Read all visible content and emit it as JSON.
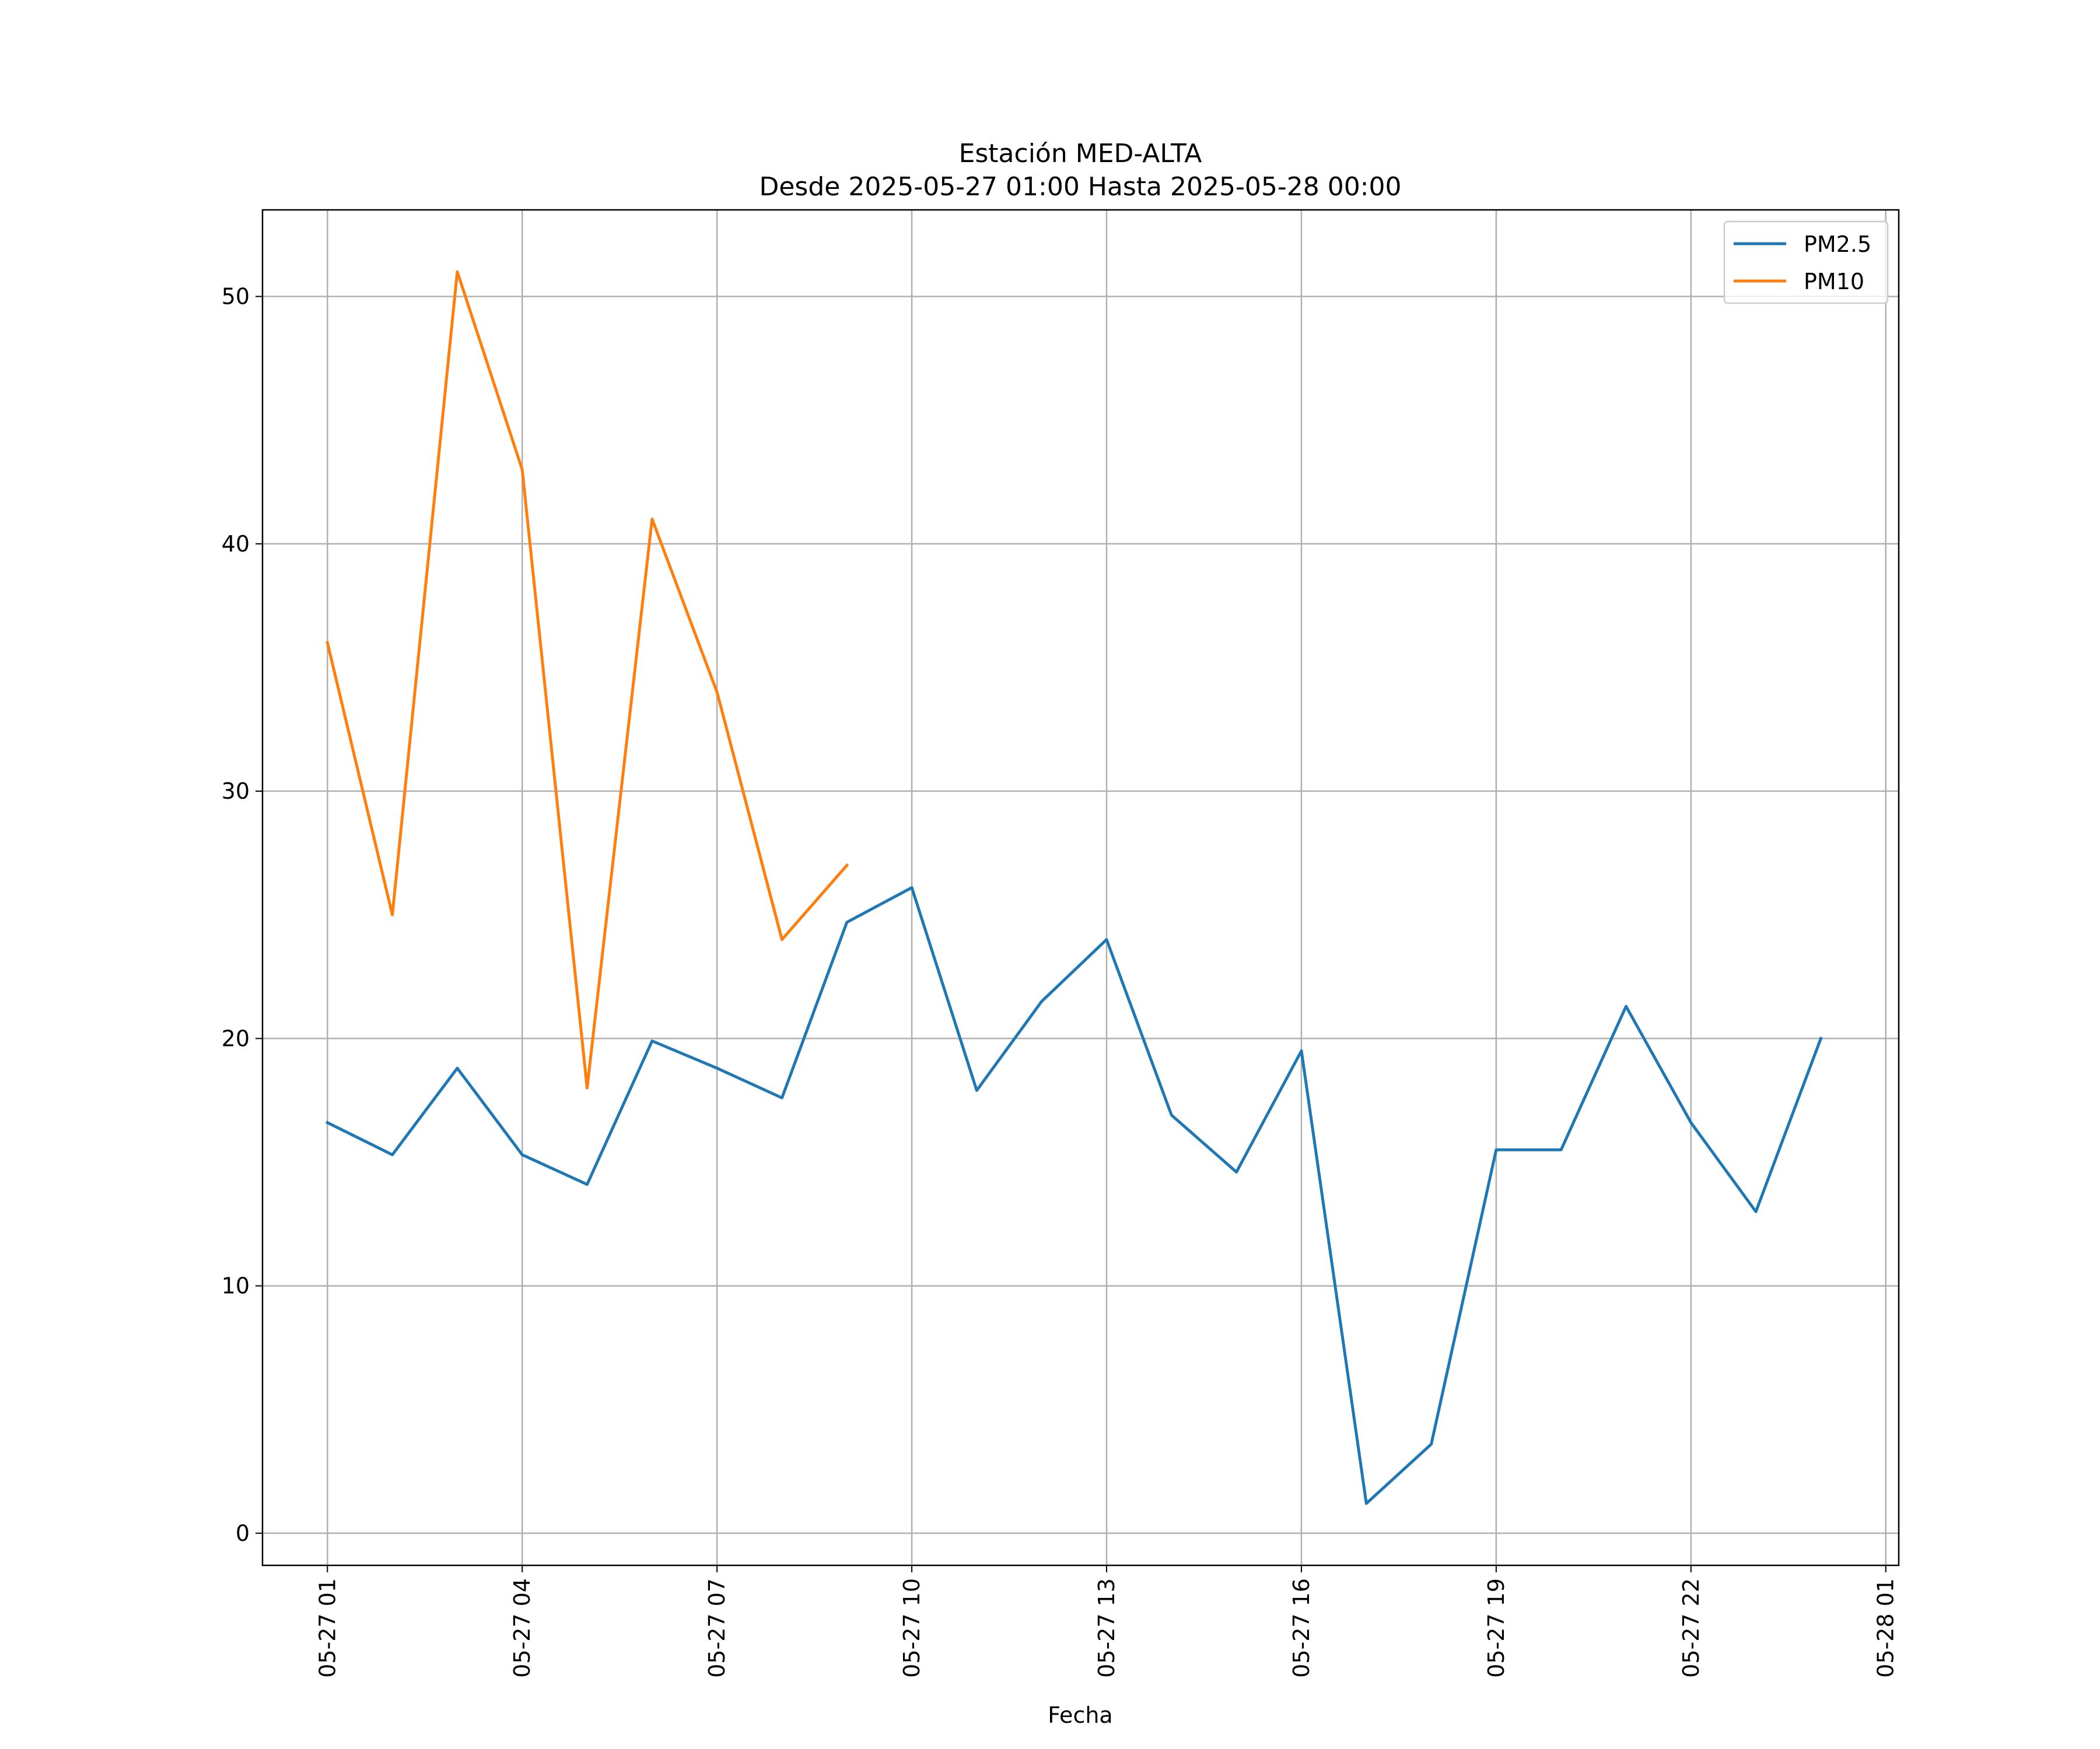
{
  "chart_data": {
    "type": "line",
    "title": "Estación MED-ALTA",
    "subtitle": "Desde 2025-05-27 01:00 Hasta 2025-05-28 00:00",
    "xlabel": "Fecha",
    "ylabel": "",
    "x": [
      "2025-05-27 01:00",
      "2025-05-27 02:00",
      "2025-05-27 03:00",
      "2025-05-27 04:00",
      "2025-05-27 05:00",
      "2025-05-27 06:00",
      "2025-05-27 07:00",
      "2025-05-27 08:00",
      "2025-05-27 09:00",
      "2025-05-27 10:00",
      "2025-05-27 11:00",
      "2025-05-27 12:00",
      "2025-05-27 13:00",
      "2025-05-27 14:00",
      "2025-05-27 15:00",
      "2025-05-27 16:00",
      "2025-05-27 17:00",
      "2025-05-27 18:00",
      "2025-05-27 19:00",
      "2025-05-27 20:00",
      "2025-05-27 21:00",
      "2025-05-27 22:00",
      "2025-05-27 23:00",
      "2025-05-28 00:00"
    ],
    "series": [
      {
        "name": "PM2.5",
        "color": "#1f77b4",
        "values": [
          16.6,
          15.3,
          18.8,
          15.3,
          14.1,
          19.9,
          18.8,
          17.6,
          24.7,
          26.1,
          17.9,
          21.5,
          24.0,
          16.9,
          14.6,
          19.5,
          1.2,
          3.6,
          15.5,
          15.5,
          21.3,
          16.6,
          13.0,
          20.0
        ]
      },
      {
        "name": "PM10",
        "color": "#ff7f0e",
        "values": [
          36,
          25,
          51,
          43,
          18,
          41,
          34,
          24,
          27,
          null,
          null,
          null,
          null,
          null,
          null,
          null,
          null,
          null,
          null,
          null,
          null,
          null,
          null,
          null
        ]
      }
    ],
    "xticks": [
      "05-27 01",
      "05-27 04",
      "05-27 07",
      "05-27 10",
      "05-27 13",
      "05-27 16",
      "05-27 19",
      "05-27 22",
      "05-28 01"
    ],
    "xlim": [
      "2025-05-27 00:00",
      "2025-05-28 01:12"
    ],
    "yticks": [
      0,
      10,
      20,
      30,
      40,
      50
    ],
    "ylim": [
      -1.3,
      53.5
    ],
    "grid": true,
    "legend_position": "top-right"
  }
}
